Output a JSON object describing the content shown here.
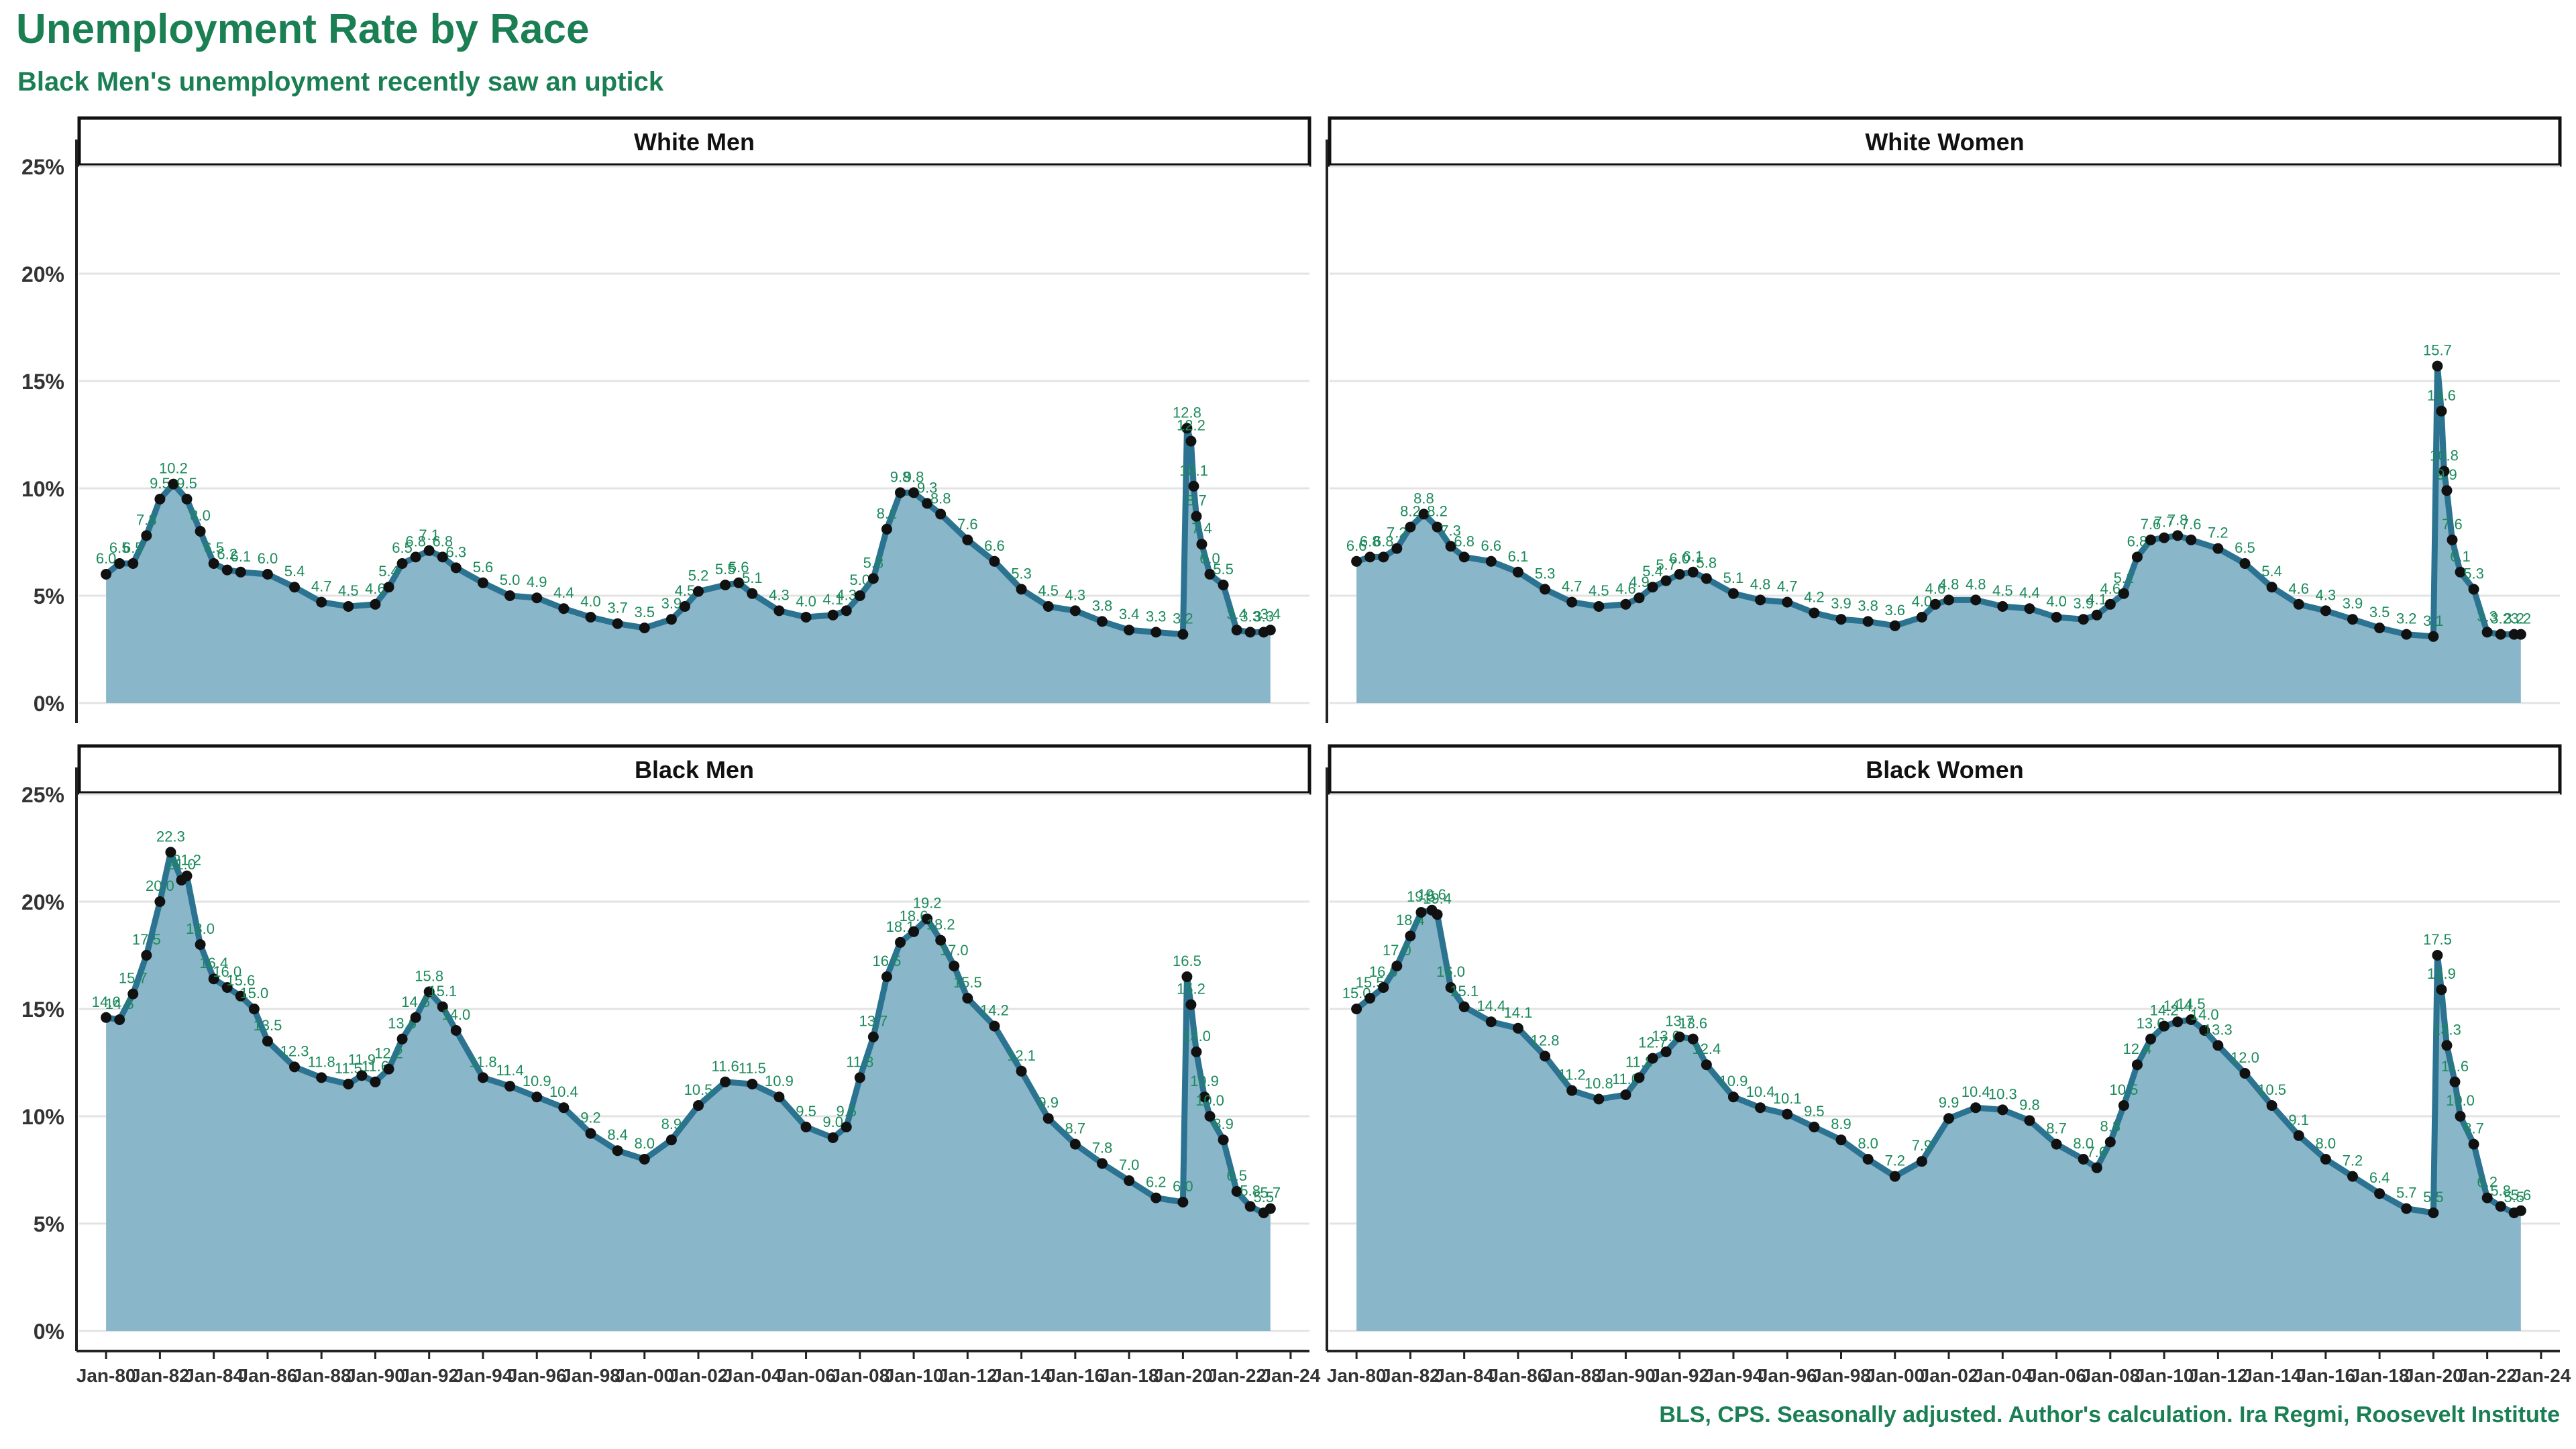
{
  "title": "Unemployment Rate by Race",
  "subtitle": "Black Men's unemployment recently saw an uptick",
  "caption": "BLS, CPS. Seasonally adjusted. Author's calculation. Ira Regmi, Roosevelt Institute",
  "colors": {
    "title": "#1b7f54",
    "area": "#8ab6ca",
    "line": "#2b7391",
    "points": "#111111",
    "labels": "#1b8a5a",
    "grid": "#e3e3e3",
    "strip": "#111111"
  },
  "chart_data": {
    "type": "area",
    "layout": "facets-2x2",
    "x_unit": "year",
    "y_unit": "percent",
    "ylim": [
      0,
      25
    ],
    "yticks": [
      0,
      5,
      10,
      15,
      20,
      25
    ],
    "ytick_labels": [
      "0%",
      "5%",
      "10%",
      "15%",
      "20%",
      "25%"
    ],
    "xlim": [
      1979,
      2024.7
    ],
    "xticks": [
      1980,
      1982,
      1984,
      1986,
      1988,
      1990,
      1992,
      1994,
      1996,
      1998,
      2000,
      2002,
      2004,
      2006,
      2008,
      2010,
      2012,
      2014,
      2016,
      2018,
      2020,
      2022,
      2024
    ],
    "xtick_labels": [
      "Jan-80",
      "Jan-82",
      "Jan-84",
      "Jan-86",
      "Jan-88",
      "Jan-90",
      "Jan-92",
      "Jan-94",
      "Jan-96",
      "Jan-98",
      "Jan-00",
      "Jan-02",
      "Jan-04",
      "Jan-06",
      "Jan-08",
      "Jan-10",
      "Jan-12",
      "Jan-14",
      "Jan-16",
      "Jan-18",
      "Jan-20",
      "Jan-22",
      "Jan-24"
    ],
    "grid": true,
    "data_labels": "each point, rounded to 0.1",
    "series": [
      {
        "name": "White Men",
        "x": [
          1980.0,
          1980.5,
          1981.0,
          1981.5,
          1982.0,
          1982.5,
          1983.0,
          1983.5,
          1984.0,
          1984.5,
          1985.0,
          1986.0,
          1987.0,
          1988.0,
          1989.0,
          1990.0,
          1990.5,
          1991.0,
          1991.5,
          1992.0,
          1992.5,
          1993.0,
          1994.0,
          1995.0,
          1996.0,
          1997.0,
          1998.0,
          1999.0,
          2000.0,
          2001.0,
          2001.5,
          2002.0,
          2003.0,
          2003.5,
          2004.0,
          2005.0,
          2006.0,
          2007.0,
          2007.5,
          2008.0,
          2008.5,
          2009.0,
          2009.5,
          2010.0,
          2010.5,
          2011.0,
          2012.0,
          2013.0,
          2014.0,
          2015.0,
          2016.0,
          2017.0,
          2018.0,
          2019.0,
          2020.0,
          2020.15,
          2020.3,
          2020.4,
          2020.5,
          2020.7,
          2021.0,
          2021.5,
          2022.0,
          2022.5,
          2023.0,
          2023.25
        ],
        "values": [
          6.0,
          6.5,
          6.5,
          7.8,
          9.5,
          10.2,
          9.5,
          8.0,
          6.5,
          6.2,
          6.1,
          6.0,
          5.4,
          4.7,
          4.5,
          4.6,
          5.4,
          6.5,
          6.8,
          7.1,
          6.8,
          6.3,
          5.6,
          5.0,
          4.9,
          4.4,
          4.0,
          3.7,
          3.5,
          3.9,
          4.5,
          5.2,
          5.5,
          5.6,
          5.1,
          4.3,
          4.0,
          4.1,
          4.3,
          5.0,
          5.8,
          8.1,
          9.8,
          9.8,
          9.3,
          8.8,
          7.6,
          6.6,
          5.3,
          4.5,
          4.3,
          3.8,
          3.4,
          3.3,
          3.2,
          12.8,
          12.2,
          10.1,
          8.7,
          7.4,
          6.0,
          5.5,
          3.4,
          3.3,
          3.3,
          3.4
        ]
      },
      {
        "name": "White Women",
        "x": [
          1980.0,
          1980.5,
          1981.0,
          1981.5,
          1982.0,
          1982.5,
          1983.0,
          1983.5,
          1984.0,
          1985.0,
          1986.0,
          1987.0,
          1988.0,
          1989.0,
          1990.0,
          1990.5,
          1991.0,
          1991.5,
          1992.0,
          1992.5,
          1993.0,
          1994.0,
          1995.0,
          1996.0,
          1997.0,
          1998.0,
          1999.0,
          2000.0,
          2001.0,
          2001.5,
          2002.0,
          2003.0,
          2004.0,
          2005.0,
          2006.0,
          2007.0,
          2007.5,
          2008.0,
          2008.5,
          2009.0,
          2009.5,
          2010.0,
          2010.5,
          2011.0,
          2012.0,
          2013.0,
          2014.0,
          2015.0,
          2016.0,
          2017.0,
          2018.0,
          2019.0,
          2020.0,
          2020.15,
          2020.3,
          2020.4,
          2020.5,
          2020.7,
          2021.0,
          2021.5,
          2022.0,
          2022.5,
          2023.0,
          2023.25
        ],
        "values": [
          6.6,
          6.8,
          6.8,
          7.2,
          8.2,
          8.8,
          8.2,
          7.3,
          6.8,
          6.6,
          6.1,
          5.3,
          4.7,
          4.5,
          4.6,
          4.9,
          5.4,
          5.7,
          6.0,
          6.1,
          5.8,
          5.1,
          4.8,
          4.7,
          4.2,
          3.9,
          3.8,
          3.6,
          4.0,
          4.6,
          4.8,
          4.8,
          4.5,
          4.4,
          4.0,
          3.9,
          4.1,
          4.6,
          5.1,
          6.8,
          7.6,
          7.7,
          7.8,
          7.6,
          7.2,
          6.5,
          5.4,
          4.6,
          4.3,
          3.9,
          3.5,
          3.2,
          3.1,
          15.7,
          13.6,
          10.8,
          9.9,
          7.6,
          6.1,
          5.3,
          3.3,
          3.2,
          3.2,
          3.2
        ]
      },
      {
        "name": "Black Men",
        "x": [
          1980.0,
          1980.5,
          1981.0,
          1981.5,
          1982.0,
          1982.4,
          1982.8,
          1983.0,
          1983.5,
          1984.0,
          1984.5,
          1985.0,
          1985.5,
          1986.0,
          1987.0,
          1988.0,
          1989.0,
          1989.5,
          1990.0,
          1990.5,
          1991.0,
          1991.5,
          1992.0,
          1992.5,
          1993.0,
          1994.0,
          1995.0,
          1996.0,
          1997.0,
          1998.0,
          1999.0,
          2000.0,
          2001.0,
          2002.0,
          2003.0,
          2004.0,
          2005.0,
          2006.0,
          2007.0,
          2007.5,
          2008.0,
          2008.5,
          2009.0,
          2009.5,
          2010.0,
          2010.5,
          2011.0,
          2011.5,
          2012.0,
          2013.0,
          2014.0,
          2015.0,
          2016.0,
          2017.0,
          2018.0,
          2019.0,
          2020.0,
          2020.15,
          2020.3,
          2020.5,
          2020.8,
          2021.0,
          2021.5,
          2022.0,
          2022.5,
          2023.0,
          2023.25
        ],
        "values": [
          14.6,
          14.5,
          15.7,
          17.5,
          20.0,
          22.3,
          21.0,
          21.2,
          18.0,
          16.4,
          16.0,
          15.6,
          15.0,
          13.5,
          12.3,
          11.8,
          11.5,
          11.9,
          11.6,
          12.2,
          13.6,
          14.6,
          15.8,
          15.1,
          14.0,
          11.8,
          11.4,
          10.9,
          10.4,
          9.2,
          8.4,
          8.0,
          8.9,
          10.5,
          11.6,
          11.5,
          10.9,
          9.5,
          9.0,
          9.5,
          11.8,
          13.7,
          16.5,
          18.1,
          18.6,
          19.2,
          18.2,
          17.0,
          15.5,
          14.2,
          12.1,
          9.9,
          8.7,
          7.8,
          7.0,
          6.2,
          6.0,
          16.5,
          15.2,
          13.0,
          10.9,
          10.0,
          8.9,
          6.5,
          5.8,
          5.5,
          5.7
        ]
      },
      {
        "name": "Black Women",
        "x": [
          1980.0,
          1980.5,
          1981.0,
          1981.5,
          1982.0,
          1982.4,
          1982.8,
          1983.0,
          1983.5,
          1984.0,
          1985.0,
          1986.0,
          1987.0,
          1988.0,
          1989.0,
          1990.0,
          1990.5,
          1991.0,
          1991.5,
          1992.0,
          1992.5,
          1993.0,
          1994.0,
          1995.0,
          1996.0,
          1997.0,
          1998.0,
          1999.0,
          2000.0,
          2001.0,
          2002.0,
          2003.0,
          2004.0,
          2005.0,
          2006.0,
          2007.0,
          2007.5,
          2008.0,
          2008.5,
          2009.0,
          2009.5,
          2010.0,
          2010.5,
          2011.0,
          2011.5,
          2012.0,
          2013.0,
          2014.0,
          2015.0,
          2016.0,
          2017.0,
          2018.0,
          2019.0,
          2020.0,
          2020.15,
          2020.3,
          2020.5,
          2020.8,
          2021.0,
          2021.5,
          2022.0,
          2022.5,
          2023.0,
          2023.25
        ],
        "values": [
          15.0,
          15.5,
          16.0,
          17.0,
          18.4,
          19.5,
          19.6,
          19.4,
          16.0,
          15.1,
          14.4,
          14.1,
          12.8,
          11.2,
          10.8,
          11.0,
          11.8,
          12.7,
          13.0,
          13.7,
          13.6,
          12.4,
          10.9,
          10.4,
          10.1,
          9.5,
          8.9,
          8.0,
          7.2,
          7.9,
          9.9,
          10.4,
          10.3,
          9.8,
          8.7,
          8.0,
          7.6,
          8.8,
          10.5,
          12.4,
          13.6,
          14.2,
          14.4,
          14.5,
          14.0,
          13.3,
          12.0,
          10.5,
          9.1,
          8.0,
          7.2,
          6.4,
          5.7,
          5.5,
          17.5,
          15.9,
          13.3,
          11.6,
          10.0,
          8.7,
          6.2,
          5.8,
          5.5,
          5.6
        ]
      }
    ]
  }
}
